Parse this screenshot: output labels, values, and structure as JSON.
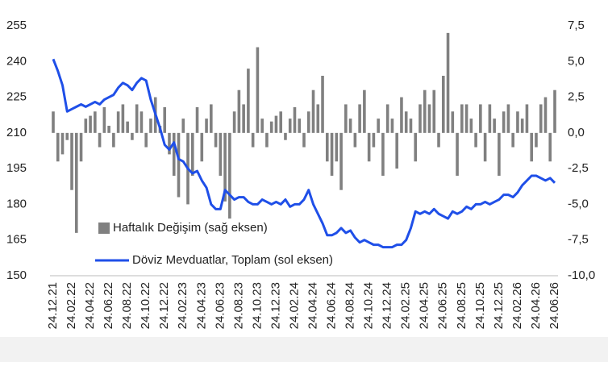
{
  "chart_data": {
    "type": "bar_line",
    "categories": [
      "24.12.21",
      null,
      null,
      null,
      "24.02.22",
      null,
      null,
      null,
      "24.04.22",
      null,
      null,
      null,
      "24.06.22",
      null,
      null,
      null,
      "24.08.22",
      null,
      null,
      null,
      "24.10.22",
      null,
      null,
      null,
      "24.12.22",
      null,
      null,
      null,
      "24.02.23",
      null,
      null,
      null,
      "24.04.23",
      null,
      null,
      null,
      "24.06.23",
      null,
      null,
      null,
      "24.08.23",
      null,
      null,
      null,
      "24.10.23",
      null,
      null,
      null,
      "24.12.23",
      null,
      null,
      null,
      "24.02.24",
      null,
      null,
      null,
      "24.04.24",
      null,
      null,
      null,
      "24.06.24",
      null,
      null,
      null,
      "24.08.24",
      null,
      null,
      null,
      "24.10.24",
      null,
      null,
      null,
      "24.12.24",
      null,
      null,
      null,
      "24.02.25",
      null,
      null,
      null,
      "24.04.25",
      null,
      null,
      null,
      "24.06.25",
      null,
      null,
      null,
      "24.08.25",
      null,
      null,
      null,
      "24.10.25",
      null,
      null,
      null,
      "24.12.25",
      null,
      null,
      null,
      "24.02.26",
      null,
      null,
      null,
      "24.04.26",
      null,
      null,
      null,
      "24.06.26"
    ],
    "series": [
      {
        "name": "Haftalık Değişim (sağ eksen)",
        "type": "bar",
        "axis": "y2",
        "color": "#808080",
        "values": [
          1.5,
          -2,
          -1.5,
          -0.5,
          -4,
          -7,
          -2,
          1,
          1.2,
          1.5,
          -1,
          1.8,
          0.5,
          -1,
          1.5,
          2,
          0.8,
          -0.5,
          2,
          1.5,
          -1,
          1,
          2.5,
          0.5,
          1.8,
          -1.5,
          -3,
          -4.5,
          1,
          -5,
          -3,
          1.8,
          -2,
          1,
          2,
          -1,
          -3,
          -4.8,
          -6,
          1.5,
          3,
          2,
          4.5,
          -1,
          6,
          1,
          -1,
          0.8,
          1.2,
          1.5,
          -0.5,
          1,
          1.8,
          1,
          -1,
          1.5,
          3,
          2,
          4,
          -2,
          -3,
          -2,
          -4,
          2,
          1,
          -1,
          2,
          3,
          -2,
          -1,
          1,
          -3,
          2,
          1,
          -2.5,
          2.5,
          1.5,
          1,
          -2,
          2,
          3,
          2,
          3,
          -1,
          4,
          7,
          1.5,
          -3,
          2,
          2,
          1,
          -1,
          2,
          -2,
          2,
          1,
          -3,
          1.5,
          2,
          -1,
          1.5,
          1,
          2,
          -2,
          -1,
          2,
          2.5,
          -2,
          3
        ]
      },
      {
        "name": "Döviz Mevduatlar, Toplam (sol eksen)",
        "type": "line",
        "color": "#1f4fe8",
        "values": [
          241,
          236,
          230,
          219,
          220,
          221,
          222,
          221,
          222,
          223,
          222,
          224,
          225,
          226,
          229,
          231,
          230,
          228,
          231,
          233,
          232,
          224,
          218,
          212,
          205,
          203,
          206,
          199,
          198,
          195,
          193,
          194,
          190,
          187,
          180,
          178,
          178,
          186,
          184,
          182,
          183,
          183,
          181,
          180,
          180,
          182,
          181,
          180,
          181,
          180,
          182,
          179,
          180,
          180,
          182,
          186,
          180,
          176,
          172,
          167,
          167,
          168,
          170,
          168,
          169,
          166,
          164,
          165,
          164,
          163,
          163,
          162,
          162,
          162,
          163,
          163,
          165,
          170,
          177,
          176,
          177,
          176,
          178,
          176,
          175,
          174,
          177,
          176,
          177,
          179,
          178,
          180,
          180,
          181,
          180,
          181,
          182,
          184,
          184,
          183,
          185,
          188,
          190,
          192,
          192,
          191,
          190,
          191,
          189
        ]
      }
    ],
    "ylim": [
      150,
      255
    ],
    "yticks": [
      150,
      165,
      180,
      195,
      210,
      225,
      240,
      255
    ],
    "y2lim": [
      -10,
      7.5
    ],
    "y2ticks": [
      {
        "value": -10,
        "label": "-10,0"
      },
      {
        "value": -7.5,
        "label": "-7,5"
      },
      {
        "value": -5,
        "label": "-5,0"
      },
      {
        "value": -2.5,
        "label": "-2,5"
      },
      {
        "value": 0,
        "label": "0,0"
      },
      {
        "value": 2.5,
        "label": "2,5"
      },
      {
        "value": 5,
        "label": "5,0"
      },
      {
        "value": 7.5,
        "label": "7,5"
      }
    ],
    "legend": "inside-bottom-left",
    "grid": false
  }
}
